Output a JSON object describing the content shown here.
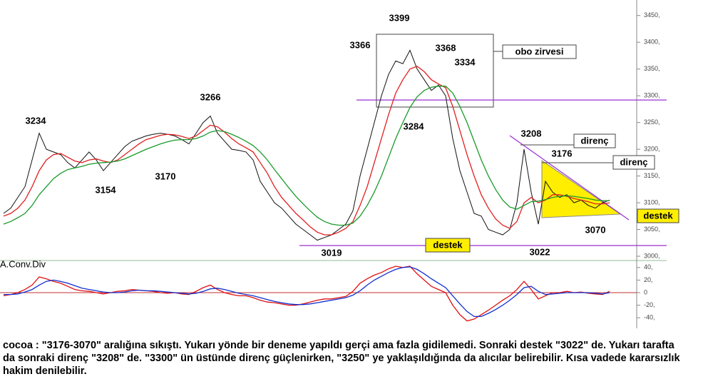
{
  "chart_data": [
    {
      "type": "line",
      "series": [
        {
          "color": "#111111",
          "values": [
            3080,
            3090,
            3110,
            3130,
            3180,
            3230,
            3200,
            3195,
            3190,
            3175,
            3165,
            3180,
            3195,
            3180,
            3160,
            3175,
            3190,
            3205,
            3215,
            3220,
            3225,
            3228,
            3230,
            3228,
            3225,
            3218,
            3210,
            3230,
            3250,
            3262,
            3230,
            3215,
            3200,
            3198,
            3195,
            3180,
            3140,
            3120,
            3100,
            3090,
            3075,
            3060,
            3050,
            3040,
            3030,
            3035,
            3040,
            3050,
            3060,
            3085,
            3150,
            3200,
            3250,
            3300,
            3340,
            3365,
            3360,
            3385,
            3350,
            3330,
            3310,
            3320,
            3300,
            3220,
            3160,
            3120,
            3080,
            3075,
            3050,
            3045,
            3040,
            3050,
            3100,
            3200,
            3120,
            3060,
            3140,
            3120,
            3110,
            3115,
            3100,
            3105,
            3095,
            3090,
            3100,
            3105
          ]
        },
        {
          "color": "#e02020",
          "values": [
            3075,
            3080,
            3090,
            3105,
            3130,
            3160,
            3180,
            3190,
            3192,
            3185,
            3178,
            3175,
            3180,
            3182,
            3178,
            3175,
            3180,
            3190,
            3200,
            3210,
            3218,
            3222,
            3226,
            3228,
            3227,
            3224,
            3220,
            3225,
            3235,
            3245,
            3242,
            3232,
            3220,
            3210,
            3203,
            3195,
            3175,
            3155,
            3130,
            3110,
            3095,
            3080,
            3068,
            3055,
            3045,
            3040,
            3040,
            3045,
            3052,
            3065,
            3095,
            3130,
            3175,
            3220,
            3265,
            3305,
            3330,
            3350,
            3355,
            3345,
            3330,
            3322,
            3315,
            3280,
            3235,
            3190,
            3150,
            3115,
            3090,
            3070,
            3058,
            3052,
            3065,
            3100,
            3110,
            3100,
            3105,
            3115,
            3115,
            3112,
            3108,
            3105,
            3102,
            3098,
            3098,
            3100
          ]
        },
        {
          "color": "#1a9a2a",
          "values": [
            3060,
            3065,
            3072,
            3080,
            3095,
            3115,
            3130,
            3145,
            3155,
            3162,
            3165,
            3168,
            3172,
            3174,
            3175,
            3176,
            3178,
            3182,
            3188,
            3194,
            3200,
            3205,
            3210,
            3214,
            3217,
            3218,
            3218,
            3220,
            3225,
            3232,
            3235,
            3233,
            3228,
            3222,
            3215,
            3207,
            3195,
            3180,
            3162,
            3145,
            3128,
            3112,
            3098,
            3085,
            3073,
            3065,
            3060,
            3058,
            3058,
            3062,
            3075,
            3095,
            3120,
            3150,
            3185,
            3220,
            3250,
            3278,
            3298,
            3310,
            3316,
            3318,
            3318,
            3305,
            3280,
            3250,
            3215,
            3180,
            3150,
            3125,
            3105,
            3092,
            3088,
            3095,
            3102,
            3103,
            3106,
            3110,
            3112,
            3113,
            3112,
            3110,
            3108,
            3105,
            3104,
            3104
          ]
        }
      ],
      "ylim": [
        2992,
        3479
      ],
      "yticks": [
        {
          "value": 3000,
          "label": "3000,"
        },
        {
          "value": 3050,
          "label": "3050,"
        },
        {
          "value": 3100,
          "label": "3100,"
        },
        {
          "value": 3150,
          "label": "3150,"
        },
        {
          "value": 3200,
          "label": "3200,"
        },
        {
          "value": 3250,
          "label": "3250,"
        },
        {
          "value": 3300,
          "label": "3300,"
        },
        {
          "value": 3350,
          "label": "3350,"
        },
        {
          "value": 3400,
          "label": "3400,"
        },
        {
          "value": 3450,
          "label": "3450,"
        }
      ],
      "levels": [
        3292,
        3020
      ],
      "level_color": "#9a30d0",
      "annotations": [
        "3399",
        "3366",
        "3368",
        "3334",
        "3234",
        "3266",
        "3284",
        "3154",
        "3170",
        "3019",
        "3022",
        "3208",
        "3176",
        "3070"
      ],
      "callouts": [
        "obo zirvesi",
        "direnç",
        "direnç",
        "destek",
        "destek"
      ]
    },
    {
      "type": "line",
      "label": "A.Conv.Div",
      "series": [
        {
          "color": "#e01010",
          "values": [
            -5,
            -3,
            0,
            5,
            12,
            25,
            22,
            18,
            15,
            10,
            5,
            3,
            2,
            0,
            -2,
            0,
            2,
            3,
            5,
            4,
            3,
            2,
            0,
            -1,
            0,
            -2,
            -3,
            2,
            8,
            12,
            5,
            0,
            -3,
            -5,
            -5,
            -8,
            -12,
            -15,
            -16,
            -18,
            -20,
            -20,
            -18,
            -15,
            -12,
            -10,
            -10,
            -8,
            -6,
            2,
            15,
            22,
            28,
            32,
            38,
            42,
            40,
            42,
            30,
            20,
            10,
            5,
            0,
            -20,
            -35,
            -45,
            -42,
            -35,
            -28,
            -20,
            -12,
            -5,
            5,
            18,
            5,
            -10,
            -5,
            0,
            0,
            2,
            0,
            1,
            -1,
            -2,
            -3,
            2
          ]
        },
        {
          "color": "#1030d0",
          "values": [
            -3,
            -3,
            -2,
            1,
            5,
            12,
            18,
            20,
            18,
            15,
            11,
            7,
            5,
            3,
            1,
            0,
            0,
            1,
            3,
            4,
            3,
            3,
            2,
            1,
            0,
            -1,
            -2,
            -1,
            2,
            6,
            7,
            5,
            2,
            -1,
            -3,
            -5,
            -8,
            -11,
            -14,
            -16,
            -18,
            -19,
            -19,
            -18,
            -16,
            -14,
            -12,
            -10,
            -8,
            -4,
            3,
            12,
            20,
            26,
            32,
            37,
            40,
            41,
            37,
            30,
            22,
            15,
            8,
            -5,
            -18,
            -30,
            -38,
            -38,
            -33,
            -27,
            -20,
            -12,
            -3,
            8,
            10,
            2,
            -3,
            -2,
            -1,
            0,
            0,
            0,
            0,
            -1,
            -2,
            0
          ]
        }
      ],
      "ylim": [
        -50,
        50
      ],
      "yticks": [
        {
          "value": 40,
          "label": "40,"
        },
        {
          "value": 20,
          "label": "20,"
        },
        0,
        {
          "value": -20,
          "label": "-20,"
        },
        {
          "value": -40,
          "label": "-40,"
        }
      ],
      "zero_line_color": "#c03030"
    }
  ],
  "caption": "cocoa : \"3176-3070\" aralığına sıkıştı. Yukarı yönde bir deneme yapıldı gerçi ama fazla gidilemedi. Sonraki destek \"3022\" de. Yukarı tarafta da sonraki direnç \"3208\" de. \"3300\" ün üstünde direnç güçlenirken, \"3250\" ye yaklaşıldığında da alıcılar belirebilir. Kısa vadede kararsızlık hakim denilebilir."
}
